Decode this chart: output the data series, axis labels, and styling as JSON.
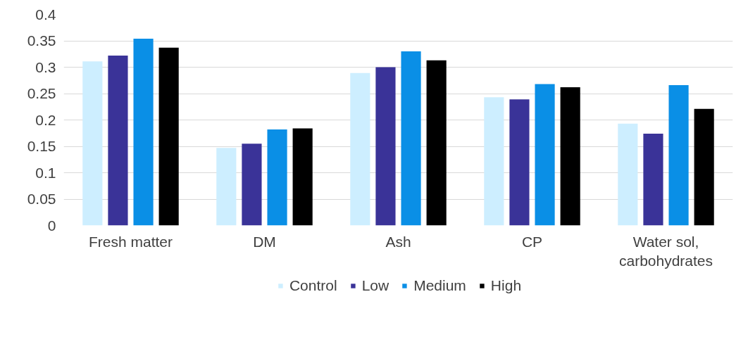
{
  "chart_data": {
    "type": "bar",
    "categories": [
      "Fresh matter",
      "DM",
      "Ash",
      "CP",
      "Water sol, carbohydrates"
    ],
    "series": [
      {
        "name": "Control",
        "color": "#cdeeff",
        "values": [
          0.311,
          0.147,
          0.289,
          0.243,
          0.193
        ]
      },
      {
        "name": "Low",
        "color": "#3a3398",
        "values": [
          0.322,
          0.155,
          0.3,
          0.239,
          0.174
        ]
      },
      {
        "name": "Medium",
        "color": "#0a8fe6",
        "values": [
          0.354,
          0.182,
          0.33,
          0.268,
          0.266
        ]
      },
      {
        "name": "High",
        "color": "#000000",
        "values": [
          0.337,
          0.184,
          0.313,
          0.262,
          0.221
        ]
      }
    ],
    "ylim": [
      0,
      0.4
    ],
    "yticks": [
      0,
      0.05,
      0.1,
      0.15,
      0.2,
      0.25,
      0.3,
      0.35,
      0.4
    ],
    "grid": "y",
    "legend": "bottom"
  }
}
